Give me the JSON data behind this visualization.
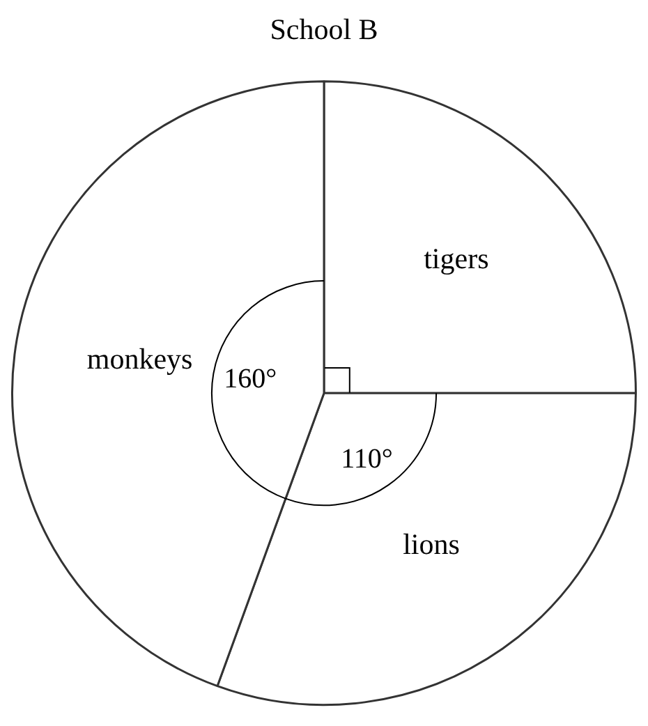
{
  "chart_data": {
    "type": "pie",
    "title": "School B",
    "categories": [
      "tigers",
      "lions",
      "monkeys"
    ],
    "values": [
      90,
      110,
      160
    ],
    "colors": [
      "#ffffff",
      "#ffffff",
      "#ffffff"
    ],
    "value_labels": [
      null,
      "110°",
      "160°"
    ],
    "legend": false
  }
}
